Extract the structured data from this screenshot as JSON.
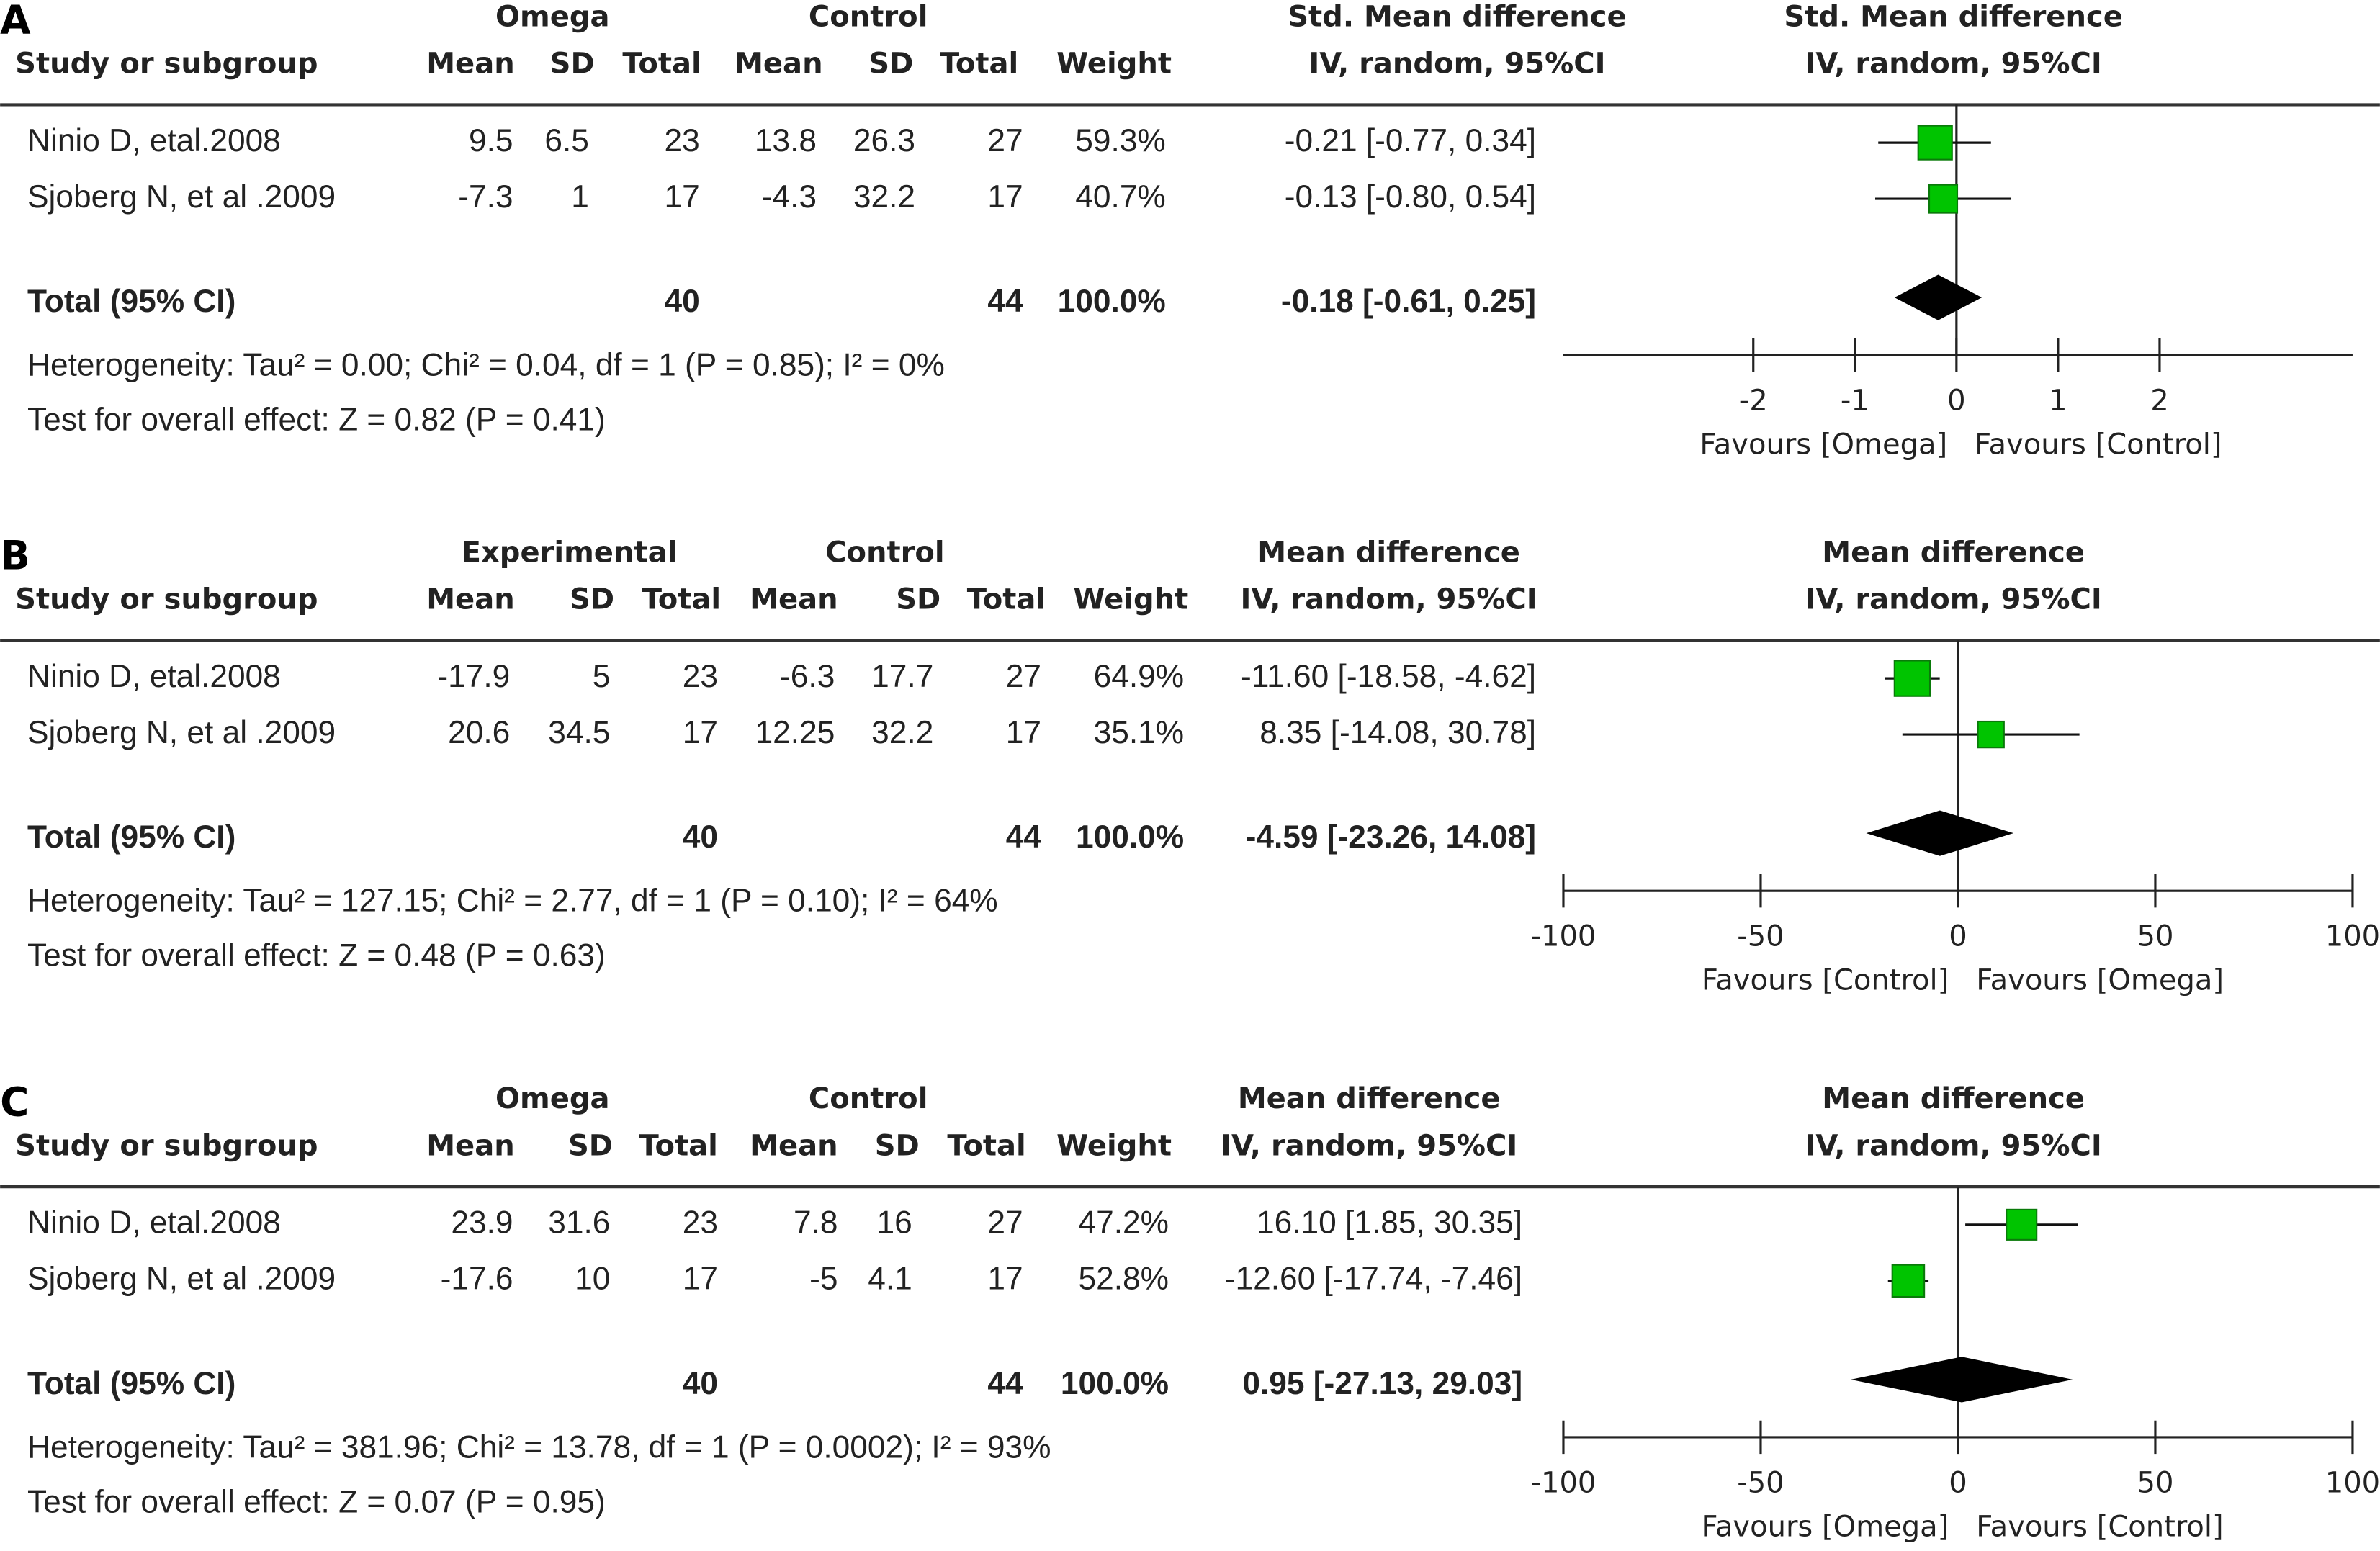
{
  "chart_data": [
    {
      "type": "forest",
      "label": "A",
      "group_headers": [
        "Omega",
        "Control"
      ],
      "columns": [
        "Study or subgroup",
        "Mean",
        "SD",
        "Total",
        "Mean",
        "SD",
        "Total",
        "Weight"
      ],
      "effect_header": [
        "Std. Mean difference",
        "IV, random, 95%CI"
      ],
      "plot_header": [
        "Std. Mean difference",
        "IV, random, 95%CI"
      ],
      "rows": [
        [
          "Ninio D, etal.2008",
          9.5,
          6.5,
          23,
          13.8,
          26.3,
          27
        ],
        [
          "Sjoberg N, et al .2009",
          -7.3,
          1,
          17,
          -4.3,
          32.2,
          17
        ]
      ],
      "weights": [
        59.3,
        40.7
      ],
      "weight_labels": [
        "59.3%",
        "40.7%"
      ],
      "estimates": [
        -0.21,
        -0.13
      ],
      "lower": [
        -0.77,
        -0.8
      ],
      "upper": [
        0.34,
        0.54
      ],
      "effect_labels": [
        "-0.21 [-0.77, 0.34]",
        "-0.13 [-0.80, 0.54]"
      ],
      "total": {
        "label": "Total (95% CI)",
        "n_exp": 40,
        "n_ctrl": 44,
        "weight_label": "100.0%",
        "estimate": -0.18,
        "lower": -0.61,
        "upper": 0.25,
        "effect_label": "-0.18 [-0.61, 0.25]"
      },
      "heterogeneity": "Heterogeneity: Tau² = 0.00; Chi² = 0.04, df = 1 (P = 0.85); I² = 0%",
      "overall_effect": "Test for overall effect: Z = 0.82 (P = 0.41)",
      "xlim": [
        -3.87,
        3.9
      ],
      "xticks": [
        -2,
        -1,
        0,
        1,
        2
      ],
      "favours": [
        "Favours [Omega]",
        "Favours [Control]"
      ],
      "color": "#00c400"
    },
    {
      "type": "forest",
      "label": "B",
      "group_headers": [
        "Experimental",
        "Control"
      ],
      "columns": [
        "Study or subgroup",
        "Mean",
        "SD",
        "Total",
        "Mean",
        "SD",
        "Total",
        "Weight"
      ],
      "effect_header": [
        "Mean difference",
        "IV, random, 95%CI"
      ],
      "plot_header": [
        "Mean difference",
        "IV, random, 95%CI"
      ],
      "rows": [
        [
          "Ninio D, etal.2008",
          -17.9,
          5,
          23,
          -6.3,
          17.7,
          27
        ],
        [
          "Sjoberg N, et al .2009",
          20.6,
          34.5,
          17,
          12.25,
          32.2,
          17
        ]
      ],
      "weights": [
        64.9,
        35.1
      ],
      "weight_labels": [
        "64.9%",
        "35.1%"
      ],
      "estimates": [
        -11.6,
        8.35
      ],
      "lower": [
        -18.58,
        -14.08
      ],
      "upper": [
        -4.62,
        30.78
      ],
      "effect_labels": [
        "-11.60 [-18.58, -4.62]",
        "8.35 [-14.08, 30.78]"
      ],
      "total": {
        "label": "Total (95% CI)",
        "n_exp": 40,
        "n_ctrl": 44,
        "weight_label": "100.0%",
        "estimate": -4.59,
        "lower": -23.26,
        "upper": 14.08,
        "effect_label": "-4.59 [-23.26, 14.08]"
      },
      "heterogeneity": "Heterogeneity: Tau² = 127.15; Chi² = 2.77, df = 1 (P = 0.10); I² = 64%",
      "overall_effect": "Test for overall effect: Z = 0.48 (P = 0.63)",
      "xlim": [
        -100,
        100
      ],
      "xticks": [
        -100,
        -50,
        0,
        50,
        100
      ],
      "favours": [
        "Favours [Control]",
        "Favours [Omega]"
      ],
      "color": "#00c400"
    },
    {
      "type": "forest",
      "label": "C",
      "group_headers": [
        "Omega",
        "Control"
      ],
      "columns": [
        "Study or subgroup",
        "Mean",
        "SD",
        "Total",
        "Mean",
        "SD",
        "Total",
        "Weight"
      ],
      "effect_header": [
        "Mean difference",
        "IV, random, 95%CI"
      ],
      "plot_header": [
        "Mean difference",
        "IV, random, 95%CI"
      ],
      "rows": [
        [
          "Ninio D, etal.2008",
          23.9,
          31.6,
          23,
          7.8,
          16,
          27
        ],
        [
          "Sjoberg N, et al .2009",
          -17.6,
          10,
          17,
          -5,
          4.1,
          17
        ]
      ],
      "weights": [
        47.2,
        52.8
      ],
      "weight_labels": [
        "47.2%",
        "52.8%"
      ],
      "estimates": [
        16.1,
        -12.6
      ],
      "lower": [
        1.85,
        -17.74
      ],
      "upper": [
        30.35,
        -7.46
      ],
      "effect_labels": [
        "16.10 [1.85, 30.35]",
        "-12.60 [-17.74, -7.46]"
      ],
      "total": {
        "label": "Total (95% CI)",
        "n_exp": 40,
        "n_ctrl": 44,
        "weight_label": "100.0%",
        "estimate": 0.95,
        "lower": -27.13,
        "upper": 29.03,
        "effect_label": "0.95 [-27.13, 29.03]"
      },
      "heterogeneity": "Heterogeneity: Tau² = 381.96; Chi² = 13.78, df = 1 (P = 0.0002); I² = 93%",
      "overall_effect": "Test for overall effect: Z = 0.07 (P = 0.95)",
      "xlim": [
        -100,
        100
      ],
      "xticks": [
        -100,
        -50,
        0,
        50,
        100
      ],
      "favours": [
        "Favours [Omega]",
        "Favours [Control]"
      ],
      "color": "#00c400"
    }
  ]
}
